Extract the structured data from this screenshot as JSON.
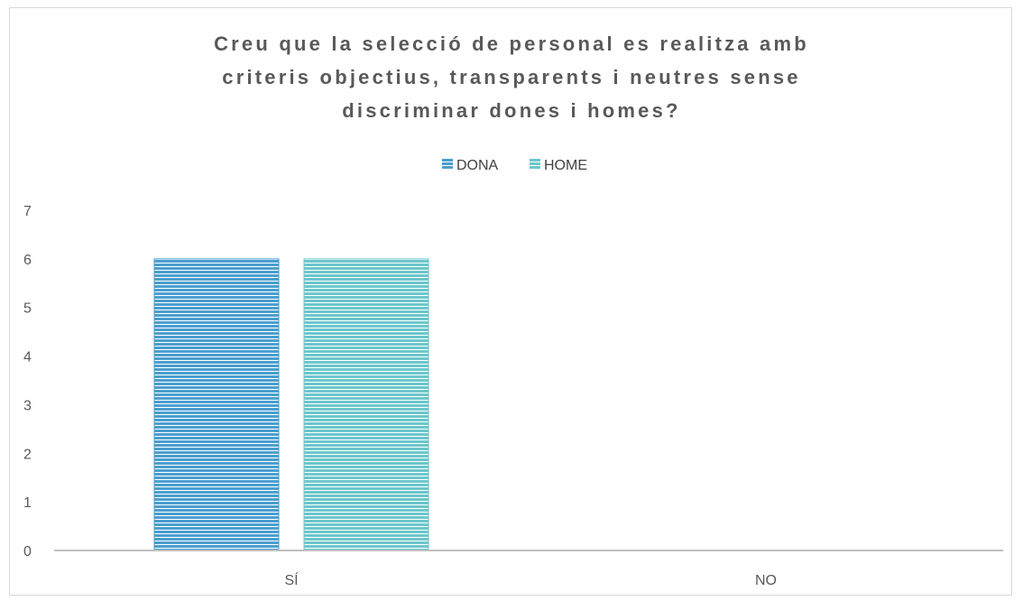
{
  "chart_data": {
    "type": "bar",
    "title_lines": [
      "Creu que la selecció de personal es realitza amb",
      "criteris objectius, transparents i neutres sense",
      "discriminar dones i homes?"
    ],
    "categories": [
      "SÍ",
      "NO"
    ],
    "series": [
      {
        "name": "DONA",
        "values": [
          6,
          0
        ],
        "color": "#4a9ed0"
      },
      {
        "name": "HOME",
        "values": [
          6,
          0
        ],
        "color": "#6cc6cc"
      }
    ],
    "ylim": [
      0,
      7
    ],
    "yticks": [
      0,
      1,
      2,
      3,
      4,
      5,
      6,
      7
    ],
    "grid": false,
    "legend_position": "top"
  }
}
